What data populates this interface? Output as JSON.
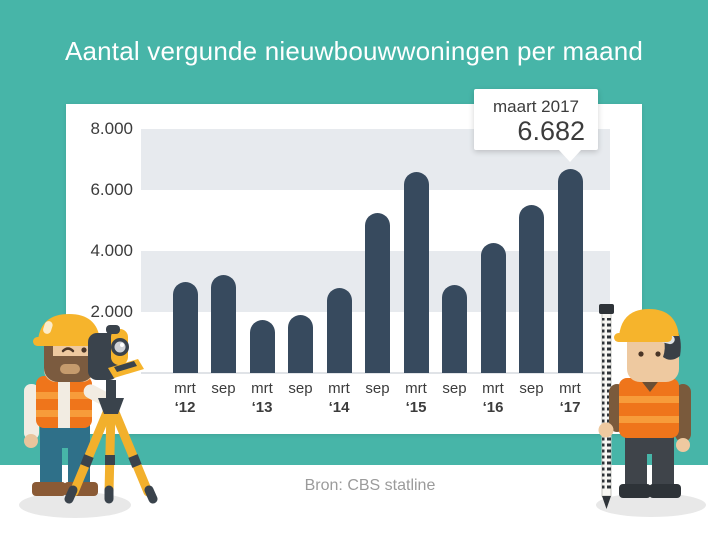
{
  "title": "Aantal vergunde nieuwbouwwoningen per maand",
  "source_note": "Bron: CBS statline",
  "callout": {
    "label": "maart 2017",
    "value": "6.682"
  },
  "colors": {
    "teal-bg": "#47b5a8",
    "panel": "#ffffff",
    "bar": "#374a5e",
    "band": "#e7eaee",
    "axis-text": "#3c3c3c",
    "title-text": "#ffffff",
    "muted-text": "#9b9b9b",
    "baseline": "#e0e3e7",
    "callout-bg": "#ffffff",
    "hat-yellow": "#f6b42c",
    "vest-orange": "#ef751b"
  },
  "chart_data": {
    "type": "bar",
    "title": "Aantal vergunde nieuwbouwwoningen per maand",
    "categories": [
      {
        "month": "mrt",
        "year": "‘12"
      },
      {
        "month": "sep",
        "year": ""
      },
      {
        "month": "mrt",
        "year": "‘13"
      },
      {
        "month": "sep",
        "year": ""
      },
      {
        "month": "mrt",
        "year": "‘14"
      },
      {
        "month": "sep",
        "year": ""
      },
      {
        "month": "mrt",
        "year": "‘15"
      },
      {
        "month": "sep",
        "year": ""
      },
      {
        "month": "mrt",
        "year": "‘16"
      },
      {
        "month": "sep",
        "year": ""
      },
      {
        "month": "mrt",
        "year": "‘17"
      }
    ],
    "values": [
      3000,
      3200,
      1750,
      1900,
      2800,
      5250,
      6600,
      2900,
      4250,
      5500,
      6682
    ],
    "highlight": {
      "index": 10,
      "label": "maart 2017",
      "value": 6682,
      "display": "6.682"
    },
    "xlabel": "",
    "ylabel": "",
    "ylim": [
      0,
      8000
    ],
    "y_ticks": [
      {
        "label": "8.000",
        "value": 8000
      },
      {
        "label": "6.000",
        "value": 6000
      },
      {
        "label": "4.000",
        "value": 4000
      },
      {
        "label": "2.000",
        "value": 2000
      }
    ],
    "band_ranges": [
      [
        8000,
        6000
      ],
      [
        4000,
        2000
      ]
    ],
    "grid": "alternating-horizontal-bands",
    "legend": "none"
  },
  "illustrations": {
    "left": "surveyor-with-theodolite-on-tripod",
    "right": "construction-worker-with-leveling-rod"
  }
}
